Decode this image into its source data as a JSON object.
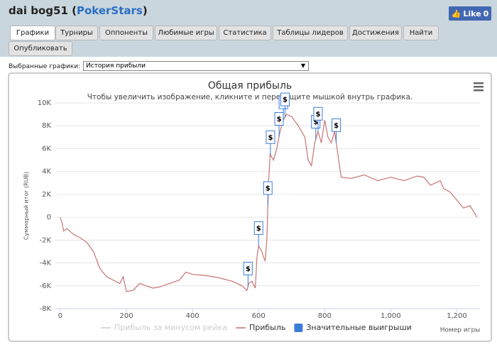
{
  "header": {
    "title_prefix": "dai bog51 (",
    "site": "PokerStars",
    "title_suffix": ")"
  },
  "facebook": {
    "label": "Like",
    "count": 0
  },
  "tabs": [
    "Графики",
    "Турниры",
    "Оппоненты",
    "Любимые игры",
    "Статистика",
    "Таблицы лидеров",
    "Достижения",
    "Найти",
    "Опубликовать"
  ],
  "active_tab": 0,
  "selector": {
    "label": "Выбранные графики:",
    "value": "История прибыли"
  },
  "chart_data": {
    "type": "line",
    "title": "Общая прибыль",
    "subtitle": "Чтобы увеличить изображение, кликните и перетащите мышкой внутрь графика.",
    "y_label": "Суммарный итог (RUB)",
    "x_label": "Номер игры",
    "xlim": [
      -15,
      1270
    ],
    "ylim": [
      -8000,
      10000
    ],
    "xticks": [
      0,
      200,
      400,
      600,
      800,
      {
        "value": 1000,
        "label": "1,000"
      },
      {
        "value": 1200,
        "label": "1,200"
      }
    ],
    "yticks": [
      {
        "value": -8000,
        "label": "-8K"
      },
      {
        "value": -6000,
        "label": "-6K"
      },
      {
        "value": -4000,
        "label": "-4K"
      },
      {
        "value": -2000,
        "label": "-2K"
      },
      0,
      {
        "value": 2000,
        "label": "2K"
      },
      {
        "value": 4000,
        "label": "4K"
      },
      {
        "value": 6000,
        "label": "6K"
      },
      {
        "value": 8000,
        "label": "8K"
      },
      {
        "value": 10000,
        "label": "10K"
      }
    ],
    "grid": true,
    "x": [
      0,
      5,
      10,
      20,
      40,
      60,
      80,
      100,
      120,
      140,
      160,
      180,
      190,
      200,
      220,
      240,
      260,
      280,
      300,
      330,
      360,
      380,
      400,
      440,
      480,
      520,
      550,
      565,
      570,
      580,
      590,
      595,
      600,
      610,
      615,
      620,
      625,
      630,
      635,
      645,
      655,
      665,
      675,
      685,
      700,
      720,
      740,
      750,
      760,
      770,
      780,
      790,
      800,
      810,
      820,
      830,
      840,
      850,
      880,
      920,
      960,
      1000,
      1040,
      1080,
      1100,
      1120,
      1150,
      1160,
      1180,
      1200,
      1220,
      1240,
      1255,
      1260
    ],
    "series": [
      {
        "name": "Прибыль за минусом рейка",
        "color": "#cccccc",
        "visible": false
      },
      {
        "name": "Прибыль",
        "color": "#c87272",
        "visible": true,
        "values": [
          0,
          -500,
          -1200,
          -1000,
          -1500,
          -1800,
          -2200,
          -3000,
          -4500,
          -5200,
          -5500,
          -5800,
          -5200,
          -6500,
          -6400,
          -5800,
          -6000,
          -6200,
          -6100,
          -5800,
          -5500,
          -4800,
          -5000,
          -5100,
          -5300,
          -5600,
          -6000,
          -6400,
          -5800,
          -5600,
          -6200,
          -3500,
          -2500,
          -3000,
          -3500,
          -3800,
          -2000,
          3000,
          5500,
          5000,
          6000,
          7500,
          8500,
          9000,
          8800,
          8000,
          7000,
          5000,
          4500,
          6500,
          7500,
          6500,
          8500,
          7000,
          6500,
          7500,
          5500,
          3500,
          3400,
          3700,
          3200,
          3500,
          3200,
          3600,
          3500,
          2800,
          3200,
          2500,
          2200,
          1500,
          800,
          1000,
          300,
          0
        ]
      }
    ],
    "flags": {
      "name": "Значительные выигрыши",
      "color": "#3b7dd8",
      "label": "$",
      "x": [
        568,
        600,
        628,
        636,
        662,
        675,
        680,
        773,
        780,
        835
      ]
    }
  }
}
